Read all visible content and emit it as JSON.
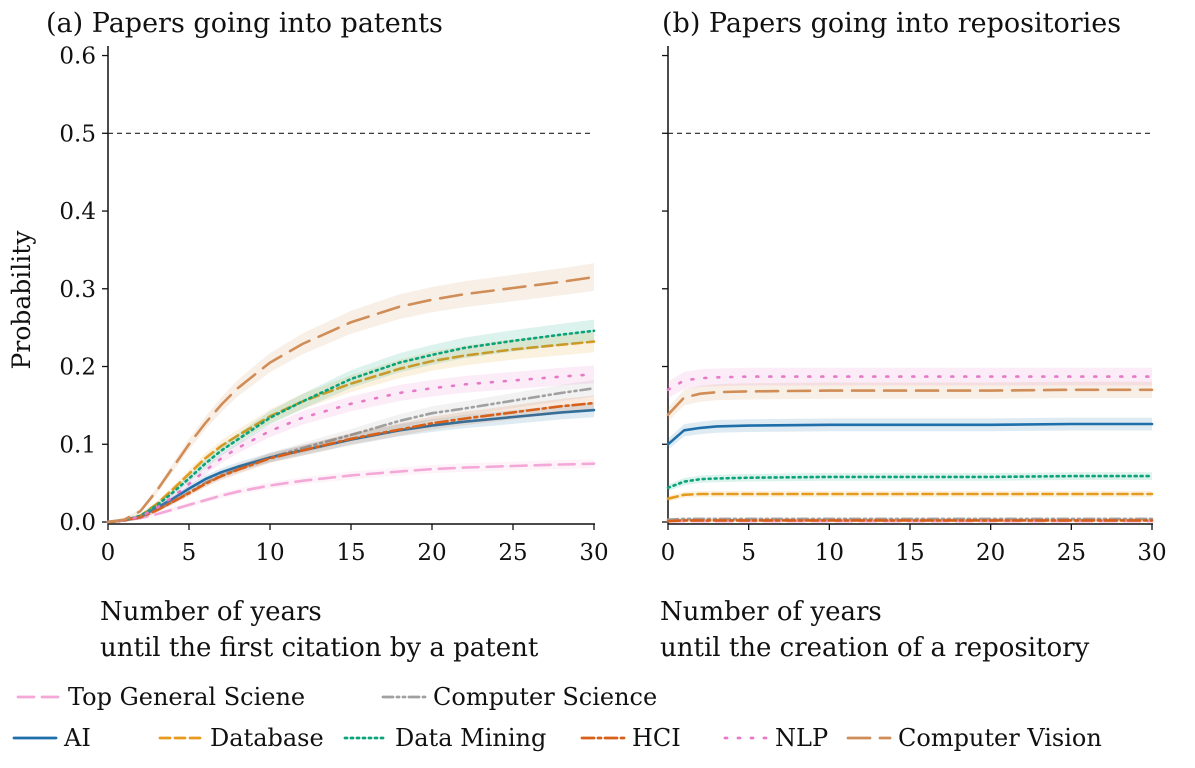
{
  "chart_data": {
    "type": "line",
    "ylabel": "Probability",
    "ylim": [
      0,
      0.62
    ],
    "xlim": [
      0,
      30
    ],
    "x_ticks": [
      "0",
      "5",
      "10",
      "15",
      "20",
      "25",
      "30"
    ],
    "y_ticks": [
      "0.0",
      "0.1",
      "0.2",
      "0.3",
      "0.4",
      "0.5",
      "0.6"
    ],
    "reference_line": 0.5,
    "grid": false,
    "legend_position": "bottom",
    "series_styles": [
      {
        "name": "Top General Sciene",
        "color": "#f4a8d8",
        "dash": "16,8"
      },
      {
        "name": "Computer Science",
        "color": "#a0a0a0",
        "dash": "10,4,2,4,2,4"
      },
      {
        "name": "AI",
        "color": "#1f6fab",
        "dash": ""
      },
      {
        "name": "Database",
        "color": "#e69a1e",
        "dash": "10,5"
      },
      {
        "name": "Data Mining",
        "color": "#0aa37a",
        "dash": "2,4"
      },
      {
        "name": "HCI",
        "color": "#d7601a",
        "dash": "12,4,3,4"
      },
      {
        "name": "NLP",
        "color": "#e67ac6",
        "dash": "2,11"
      },
      {
        "name": "Computer Vision",
        "color": "#d08d57",
        "dash": "22,10"
      }
    ],
    "panels": [
      {
        "title": "(a)  Papers going into patents",
        "xlabel": [
          "Number of years",
          "until the first citation by a patent"
        ],
        "x": [
          0,
          1,
          2,
          3,
          4,
          5,
          6,
          7,
          8,
          10,
          12,
          15,
          18,
          20,
          22,
          25,
          28,
          30
        ],
        "series": [
          {
            "name": "Top General Sciene",
            "values": [
              0.0,
              0.002,
              0.005,
              0.01,
              0.016,
              0.022,
              0.028,
              0.034,
              0.039,
              0.047,
              0.053,
              0.06,
              0.065,
              0.068,
              0.07,
              0.072,
              0.074,
              0.075
            ]
          },
          {
            "name": "Computer Science",
            "values": [
              0.0,
              0.002,
              0.006,
              0.015,
              0.026,
              0.038,
              0.05,
              0.06,
              0.068,
              0.083,
              0.095,
              0.112,
              0.13,
              0.14,
              0.146,
              0.156,
              0.166,
              0.172
            ]
          },
          {
            "name": "AI",
            "values": [
              0.0,
              0.002,
              0.007,
              0.018,
              0.03,
              0.043,
              0.055,
              0.064,
              0.071,
              0.083,
              0.092,
              0.106,
              0.118,
              0.124,
              0.129,
              0.135,
              0.141,
              0.144
            ]
          },
          {
            "name": "Database",
            "values": [
              0.0,
              0.002,
              0.008,
              0.023,
              0.042,
              0.062,
              0.082,
              0.098,
              0.111,
              0.136,
              0.155,
              0.178,
              0.197,
              0.207,
              0.214,
              0.222,
              0.228,
              0.232
            ]
          },
          {
            "name": "Data Mining",
            "values": [
              0.0,
              0.002,
              0.008,
              0.021,
              0.038,
              0.056,
              0.075,
              0.092,
              0.106,
              0.134,
              0.155,
              0.184,
              0.205,
              0.215,
              0.224,
              0.233,
              0.241,
              0.246
            ]
          },
          {
            "name": "HCI",
            "values": [
              0.0,
              0.002,
              0.006,
              0.015,
              0.026,
              0.037,
              0.049,
              0.059,
              0.067,
              0.082,
              0.092,
              0.107,
              0.119,
              0.127,
              0.133,
              0.141,
              0.149,
              0.153
            ]
          },
          {
            "name": "NLP",
            "values": [
              0.0,
              0.002,
              0.007,
              0.018,
              0.032,
              0.049,
              0.066,
              0.082,
              0.095,
              0.117,
              0.134,
              0.152,
              0.166,
              0.172,
              0.177,
              0.182,
              0.187,
              0.19
            ]
          },
          {
            "name": "Computer Vision",
            "values": [
              0.0,
              0.003,
              0.014,
              0.04,
              0.07,
              0.1,
              0.127,
              0.151,
              0.172,
              0.205,
              0.229,
              0.257,
              0.277,
              0.286,
              0.293,
              0.301,
              0.309,
              0.315
            ]
          }
        ]
      },
      {
        "title": "(b) Papers going into repositories",
        "xlabel": [
          "Number of years",
          "until the creation of a repository"
        ],
        "x": [
          0,
          1,
          2,
          3,
          5,
          10,
          15,
          20,
          25,
          30
        ],
        "series": [
          {
            "name": "Top General Sciene",
            "values": [
              0.001,
              0.001,
              0.001,
              0.001,
              0.001,
              0.001,
              0.001,
              0.001,
              0.001,
              0.001
            ]
          },
          {
            "name": "Computer Science",
            "values": [
              0.003,
              0.004,
              0.004,
              0.004,
              0.004,
              0.004,
              0.004,
              0.004,
              0.004,
              0.004
            ]
          },
          {
            "name": "AI",
            "values": [
              0.1,
              0.118,
              0.121,
              0.123,
              0.124,
              0.125,
              0.125,
              0.125,
              0.126,
              0.126
            ]
          },
          {
            "name": "Database",
            "values": [
              0.03,
              0.035,
              0.036,
              0.036,
              0.036,
              0.036,
              0.036,
              0.036,
              0.036,
              0.036
            ]
          },
          {
            "name": "Data Mining",
            "values": [
              0.044,
              0.052,
              0.055,
              0.056,
              0.057,
              0.058,
              0.058,
              0.058,
              0.059,
              0.059
            ]
          },
          {
            "name": "HCI",
            "values": [
              0.001,
              0.002,
              0.002,
              0.002,
              0.002,
              0.002,
              0.002,
              0.002,
              0.002,
              0.002
            ]
          },
          {
            "name": "NLP",
            "values": [
              0.17,
              0.182,
              0.185,
              0.186,
              0.187,
              0.187,
              0.187,
              0.187,
              0.187,
              0.187
            ]
          },
          {
            "name": "Computer Vision",
            "values": [
              0.138,
              0.16,
              0.165,
              0.167,
              0.168,
              0.169,
              0.169,
              0.169,
              0.17,
              0.17
            ]
          }
        ]
      }
    ],
    "legend": {
      "row1": [
        "Top General Sciene",
        "Computer Science"
      ],
      "row2": [
        "AI",
        "Database",
        "Data Mining",
        "HCI",
        "NLP",
        "Computer Vision"
      ]
    }
  }
}
